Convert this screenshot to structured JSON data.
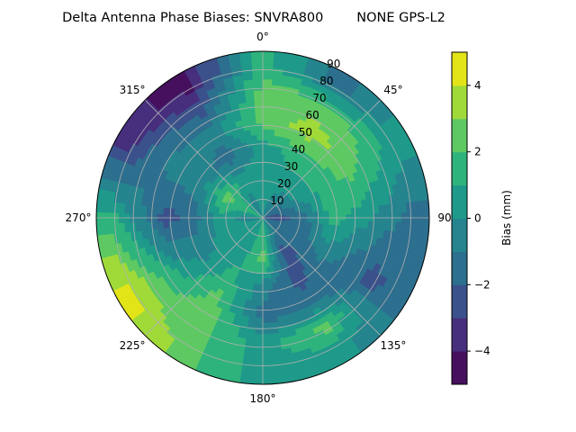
{
  "chart_data": {
    "type": "heatmap",
    "subtype": "polar-filled-contour",
    "title": "Delta Antenna Phase Biases: SNVRA800        NONE GPS-L2",
    "theta_direction": "clockwise",
    "theta_zero": "north",
    "theta_ticks": [
      "0°",
      "45°",
      "90°",
      "135°",
      "180°",
      "225°",
      "270°",
      "315°"
    ],
    "r_ticks": [
      "10",
      "20",
      "30",
      "40",
      "50",
      "60",
      "70",
      "80",
      "90"
    ],
    "r_range": [
      0,
      90
    ],
    "grid": true,
    "azimuth_deg": [
      0,
      30,
      60,
      90,
      120,
      150,
      180,
      210,
      240,
      270,
      300,
      330
    ],
    "zenith_deg": [
      7.5,
      22.5,
      37.5,
      52.5,
      67.5,
      82.5
    ],
    "bias_mm": [
      [
        0.5,
        0.5,
        0.5,
        2.5,
        2.5,
        1.5
      ],
      [
        -0.5,
        0.5,
        1.5,
        3.5,
        2.5,
        -1.5
      ],
      [
        -1.5,
        0.5,
        1.5,
        2.5,
        1.5,
        0.5
      ],
      [
        -2.5,
        -1.5,
        1.5,
        0.5,
        -0.5,
        -1.5
      ],
      [
        -1.5,
        -1.5,
        -0.5,
        -1.5,
        -2.5,
        -1.5
      ],
      [
        -0.5,
        -2.5,
        -2.5,
        -1.5,
        2.5,
        0.5
      ],
      [
        1.5,
        2.5,
        -0.5,
        -1.5,
        0.5,
        0.5
      ],
      [
        0.5,
        0.5,
        1.5,
        2.5,
        2.5,
        2.5
      ],
      [
        0.5,
        0.5,
        -0.5,
        0.5,
        2.5,
        4.5
      ],
      [
        -0.5,
        0.5,
        -1.5,
        -2.5,
        -0.5,
        1.5
      ],
      [
        1.5,
        2.5,
        -0.5,
        -0.5,
        -1.5,
        -3.5
      ],
      [
        -0.5,
        0.5,
        -1.5,
        -0.5,
        -2.5,
        -4.5
      ]
    ],
    "colorbar": {
      "label": "Bias (mm)",
      "range": [
        -5,
        5
      ],
      "levels": [
        -5,
        -4,
        -3,
        -2,
        -1,
        0,
        1,
        2,
        3,
        4,
        5
      ],
      "ticks": [
        -4,
        -2,
        0,
        2,
        4
      ],
      "tick_labels": [
        "−4",
        "−2",
        "0",
        "2",
        "4"
      ],
      "colormap": "viridis",
      "colors": [
        "#46105f",
        "#472f7d",
        "#3b518b",
        "#2d6f8e",
        "#25848e",
        "#1f9a8a",
        "#2eb37c",
        "#5ec962",
        "#a0da39",
        "#e2e418"
      ]
    }
  }
}
